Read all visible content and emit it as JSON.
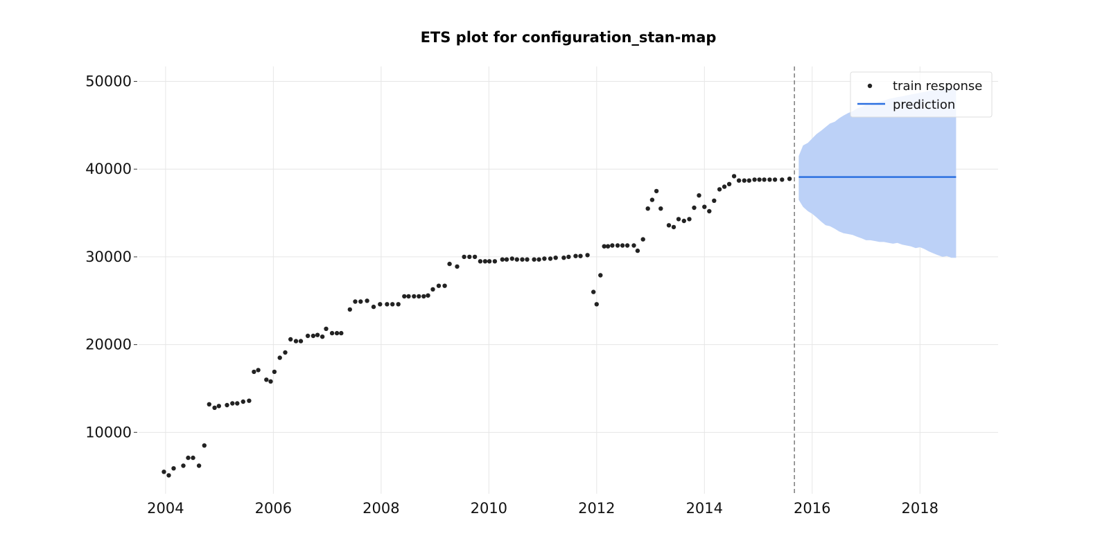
{
  "chart_data": {
    "type": "scatter",
    "title": "ETS plot for configuration_stan-map",
    "xlabel": "",
    "ylabel": "",
    "xlim": [
      2003.5,
      2019.45
    ],
    "ylim": [
      3000,
      51700
    ],
    "x_ticks": [
      2004,
      2006,
      2008,
      2010,
      2012,
      2014,
      2016,
      2018
    ],
    "y_ticks": [
      10000,
      20000,
      30000,
      40000,
      50000
    ],
    "grid": true,
    "legend_position": "top-right",
    "train_end": 2015.67,
    "series": [
      {
        "name": "train response",
        "kind": "scatter",
        "color": "#222222",
        "x": [
          2003.97,
          2004.06,
          2004.15,
          2004.33,
          2004.42,
          2004.51,
          2004.62,
          2004.72,
          2004.81,
          2004.91,
          2004.99,
          2005.14,
          2005.24,
          2005.33,
          2005.44,
          2005.55,
          2005.64,
          2005.72,
          2005.87,
          2005.95,
          2006.02,
          2006.12,
          2006.22,
          2006.32,
          2006.42,
          2006.51,
          2006.64,
          2006.74,
          2006.82,
          2006.91,
          2006.98,
          2007.09,
          2007.18,
          2007.26,
          2007.42,
          2007.52,
          2007.62,
          2007.74,
          2007.86,
          2007.98,
          2008.11,
          2008.21,
          2008.32,
          2008.43,
          2008.51,
          2008.61,
          2008.7,
          2008.79,
          2008.87,
          2008.96,
          2009.07,
          2009.18,
          2009.27,
          2009.41,
          2009.54,
          2009.64,
          2009.74,
          2009.84,
          2009.93,
          2010.01,
          2010.11,
          2010.25,
          2010.33,
          2010.43,
          2010.52,
          2010.62,
          2010.71,
          2010.84,
          2010.93,
          2011.03,
          2011.14,
          2011.24,
          2011.39,
          2011.48,
          2011.61,
          2011.7,
          2011.83,
          2011.94,
          2012.0,
          2012.07,
          2012.14,
          2012.21,
          2012.29,
          2012.39,
          2012.48,
          2012.57,
          2012.69,
          2012.76,
          2012.86,
          2012.95,
          2013.03,
          2013.11,
          2013.19,
          2013.34,
          2013.43,
          2013.52,
          2013.62,
          2013.72,
          2013.81,
          2013.9,
          2014.0,
          2014.09,
          2014.18,
          2014.28,
          2014.37,
          2014.46,
          2014.55,
          2014.64,
          2014.74,
          2014.83,
          2014.93,
          2015.02,
          2015.11,
          2015.21,
          2015.31,
          2015.44,
          2015.58
        ],
        "y": [
          5500,
          5100,
          5900,
          6200,
          7100,
          7100,
          6200,
          8500,
          13200,
          12800,
          13000,
          13100,
          13300,
          13300,
          13500,
          13600,
          16900,
          17100,
          16000,
          15800,
          16900,
          18500,
          19100,
          20600,
          20400,
          20400,
          21000,
          21000,
          21100,
          20900,
          21800,
          21300,
          21300,
          21300,
          24000,
          24900,
          24900,
          25000,
          24300,
          24600,
          24600,
          24600,
          24600,
          25500,
          25500,
          25500,
          25500,
          25500,
          25600,
          26300,
          26700,
          26700,
          29200,
          28900,
          30000,
          30000,
          30000,
          29500,
          29500,
          29500,
          29500,
          29700,
          29700,
          29800,
          29700,
          29700,
          29700,
          29700,
          29700,
          29800,
          29800,
          29900,
          29900,
          30000,
          30100,
          30100,
          30200,
          26000,
          24600,
          27900,
          31200,
          31200,
          31300,
          31300,
          31300,
          31300,
          31300,
          30700,
          32000,
          35500,
          36500,
          37500,
          35500,
          33600,
          33400,
          34300,
          34100,
          34300,
          35600,
          37000,
          35700,
          35200,
          36400,
          37700,
          38000,
          38300,
          39200,
          38700,
          38700,
          38700,
          38800,
          38800,
          38800,
          38800,
          38800,
          38800,
          38900
        ]
      },
      {
        "name": "prediction",
        "kind": "line",
        "color": "#2b6fe0",
        "band_color": "#bcd1f7",
        "x": [
          2015.75,
          2015.83,
          2015.92,
          2016.0,
          2016.08,
          2016.17,
          2016.25,
          2016.33,
          2016.42,
          2016.5,
          2016.58,
          2016.67,
          2016.75,
          2016.83,
          2016.92,
          2017.0,
          2017.08,
          2017.17,
          2017.25,
          2017.33,
          2017.42,
          2017.5,
          2017.58,
          2017.67,
          2017.75,
          2017.83,
          2017.92,
          2018.0,
          2018.08,
          2018.17,
          2018.25,
          2018.33,
          2018.42,
          2018.5,
          2018.58,
          2018.67
        ],
        "y": [
          39100,
          39100,
          39100,
          39100,
          39100,
          39100,
          39100,
          39100,
          39100,
          39100,
          39100,
          39100,
          39100,
          39100,
          39100,
          39100,
          39100,
          39100,
          39100,
          39100,
          39100,
          39100,
          39100,
          39100,
          39100,
          39100,
          39100,
          39100,
          39100,
          39100,
          39100,
          39100,
          39100,
          39100,
          39100,
          39100
        ],
        "upper": [
          41500,
          42700,
          43000,
          43500,
          44000,
          44400,
          44800,
          45200,
          45400,
          45800,
          46100,
          46400,
          46600,
          46900,
          47100,
          47300,
          47300,
          47500,
          47700,
          47800,
          48000,
          48100,
          48200,
          48300,
          48400,
          48500,
          48600,
          48700,
          48800,
          48900,
          49000,
          49000,
          49100,
          49200,
          49200,
          49300
        ],
        "lower": [
          36500,
          35700,
          35200,
          34900,
          34500,
          34000,
          33600,
          33500,
          33200,
          32900,
          32700,
          32600,
          32500,
          32300,
          32100,
          31900,
          31900,
          31800,
          31700,
          31700,
          31600,
          31500,
          31600,
          31400,
          31300,
          31200,
          31000,
          31100,
          30900,
          30600,
          30400,
          30200,
          30000,
          30100,
          29900,
          29900
        ]
      }
    ]
  }
}
